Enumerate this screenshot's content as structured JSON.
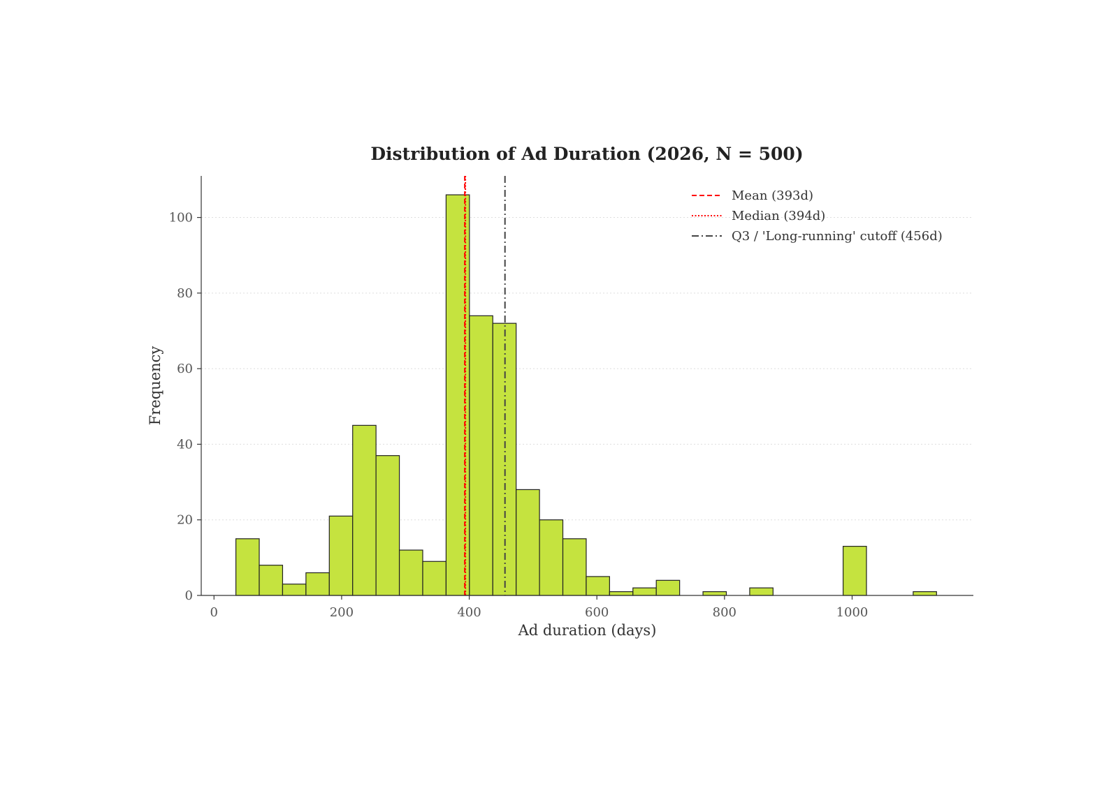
{
  "chart_data": {
    "type": "bar",
    "title": "Distribution of Ad Duration (2026, N = 500)",
    "xlabel": "Ad duration (days)",
    "ylabel": "Frequency",
    "xlim": [
      -20,
      1190
    ],
    "ylim": [
      0,
      111
    ],
    "xticks": [
      0,
      200,
      400,
      600,
      800,
      1000
    ],
    "yticks": [
      0,
      20,
      40,
      60,
      80,
      100
    ],
    "grid": "horizontal dotted",
    "legend_position": "top-right",
    "bar_color": "#c5e33f",
    "bar_edge_color": "#222222",
    "bin_width": 36.6,
    "bins": [
      {
        "start": 34.3,
        "count": 15
      },
      {
        "start": 70.9,
        "count": 8
      },
      {
        "start": 107.5,
        "count": 3
      },
      {
        "start": 144.1,
        "count": 6
      },
      {
        "start": 180.7,
        "count": 21
      },
      {
        "start": 217.3,
        "count": 45
      },
      {
        "start": 253.9,
        "count": 37
      },
      {
        "start": 290.5,
        "count": 12
      },
      {
        "start": 327.1,
        "count": 9
      },
      {
        "start": 363.7,
        "count": 106
      },
      {
        "start": 400.3,
        "count": 74
      },
      {
        "start": 436.9,
        "count": 72
      },
      {
        "start": 473.5,
        "count": 28
      },
      {
        "start": 510.1,
        "count": 20
      },
      {
        "start": 546.7,
        "count": 15
      },
      {
        "start": 583.3,
        "count": 5
      },
      {
        "start": 619.9,
        "count": 1
      },
      {
        "start": 656.5,
        "count": 2
      },
      {
        "start": 693.1,
        "count": 4
      },
      {
        "start": 729.7,
        "count": 0
      },
      {
        "start": 766.3,
        "count": 1
      },
      {
        "start": 802.9,
        "count": 0
      },
      {
        "start": 839.5,
        "count": 2
      },
      {
        "start": 876.1,
        "count": 0
      },
      {
        "start": 912.7,
        "count": 0
      },
      {
        "start": 949.3,
        "count": 0
      },
      {
        "start": 985.9,
        "count": 13
      },
      {
        "start": 1022.5,
        "count": 0
      },
      {
        "start": 1059.1,
        "count": 0
      },
      {
        "start": 1095.7,
        "count": 1
      }
    ],
    "reference_lines": [
      {
        "label": "Mean (393d)",
        "x": 393,
        "color": "#ff0000",
        "style": "dashed"
      },
      {
        "label": "Median (394d)",
        "x": 394,
        "color": "#ff0000",
        "style": "dotted"
      },
      {
        "label": "Q3 / 'Long-running' cutoff (456d)",
        "x": 456,
        "color": "#444444",
        "style": "dashdot"
      }
    ]
  }
}
